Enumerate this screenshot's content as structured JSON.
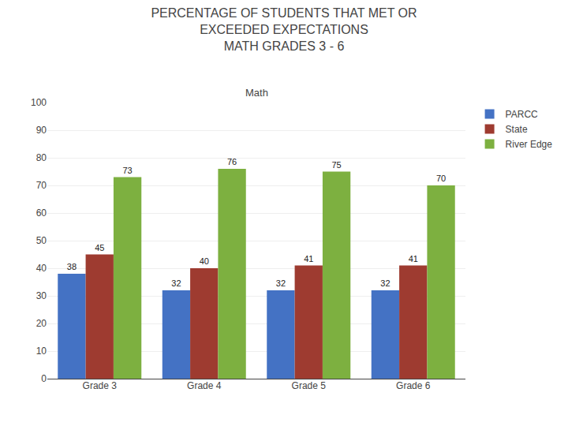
{
  "chart_data": {
    "type": "bar",
    "title": "PERCENTAGE OF STUDENTS THAT MET OR\nEXCEEDED EXPECTATIONS\nMATH GRADES 3 - 6",
    "subtitle": "Math",
    "categories": [
      "Grade 3",
      "Grade 4",
      "Grade 5",
      "Grade 6"
    ],
    "series": [
      {
        "name": "PARCC",
        "color": "#4472C4",
        "values": [
          38,
          32,
          32,
          32
        ]
      },
      {
        "name": "State",
        "color": "#9E3B30",
        "values": [
          45,
          40,
          41,
          41
        ]
      },
      {
        "name": "River Edge",
        "color": "#7DB040",
        "values": [
          73,
          76,
          75,
          70
        ]
      }
    ],
    "ylim": [
      0,
      100
    ],
    "yticks": [
      0,
      10,
      20,
      30,
      40,
      50,
      60,
      70,
      80,
      90,
      100
    ],
    "grid": true,
    "legend": "right",
    "data_labels": true
  }
}
